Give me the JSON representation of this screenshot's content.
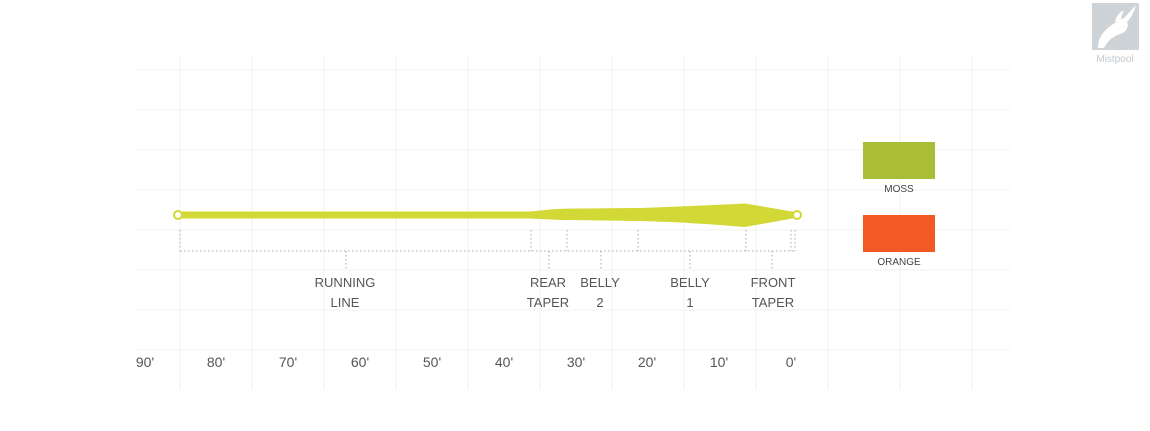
{
  "sections": [
    {
      "id": "running-line",
      "line1": "RUNNING",
      "line2": "LINE"
    },
    {
      "id": "rear-taper",
      "line1": "REAR",
      "line2": "TAPER"
    },
    {
      "id": "belly-2",
      "line1": "BELLY",
      "line2": "2"
    },
    {
      "id": "belly-1",
      "line1": "BELLY",
      "line2": "1"
    },
    {
      "id": "front-taper",
      "line1": "FRONT",
      "line2": "TAPER"
    }
  ],
  "axis_ticks": [
    "90'",
    "80'",
    "70'",
    "60'",
    "50'",
    "40'",
    "30'",
    "20'",
    "10'",
    "0'"
  ],
  "colors": [
    {
      "name": "MOSS",
      "hex": "#a9bd36"
    },
    {
      "name": "ORANGE",
      "hex": "#f15a24"
    }
  ],
  "line_color": "#d2d836",
  "watermark": {
    "text": "Mistpool",
    "icon": "fish-logo-icon"
  }
}
